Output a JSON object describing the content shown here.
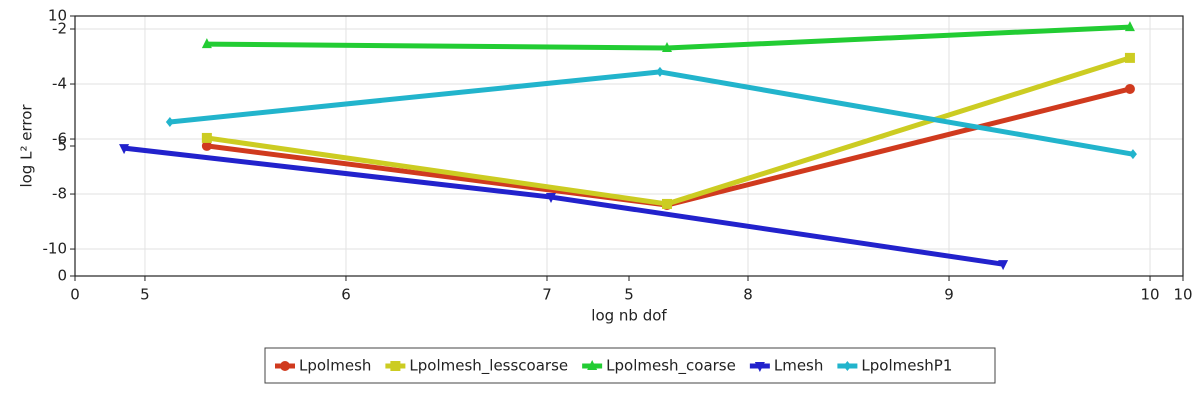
{
  "chart_data": {
    "type": "line",
    "x_label": "log nb dof",
    "y_label": "log L² error",
    "xlim": [
      4.652,
      10.164
    ],
    "xticks": [
      5,
      6,
      7,
      8,
      9,
      10
    ],
    "ylim": [
      -10.98,
      -1.527
    ],
    "yticks": [
      -2,
      -4,
      -6,
      -8,
      -10
    ],
    "x2lim": [
      0,
      10
    ],
    "x2ticks": [
      0,
      5,
      10
    ],
    "y2lim": [
      0,
      10
    ],
    "y2ticks": [
      10,
      5,
      0
    ],
    "grid": true,
    "legend": "bottom",
    "series": [
      {
        "name": "Lpolmesh",
        "color": "#d03a1e",
        "marker": "circle",
        "x": [
          5.308,
          7.597,
          9.9
        ],
        "values": [
          -6.25,
          -8.4,
          -4.18
        ]
      },
      {
        "name": "Lpolmesh_lesscoarse",
        "color": "#cccc22",
        "marker": "square",
        "x": [
          5.308,
          7.597,
          9.9
        ],
        "values": [
          -5.96,
          -8.36,
          -3.05
        ]
      },
      {
        "name": "Lpolmesh_coarse",
        "color": "#22cc33",
        "marker": "triangle-up",
        "x": [
          5.308,
          7.597,
          9.9
        ],
        "values": [
          -2.55,
          -2.69,
          -1.93
        ]
      },
      {
        "name": "Lmesh",
        "color": "#2222cc",
        "marker": "triangle-down",
        "x": [
          4.896,
          7.02,
          9.269
        ],
        "values": [
          -6.33,
          -8.11,
          -10.55
        ]
      },
      {
        "name": "LpolmeshP1",
        "color": "#22b4cc",
        "marker": "diamond",
        "x": [
          5.124,
          7.562,
          9.915
        ],
        "values": [
          -5.38,
          -3.56,
          -6.55
        ]
      }
    ]
  }
}
